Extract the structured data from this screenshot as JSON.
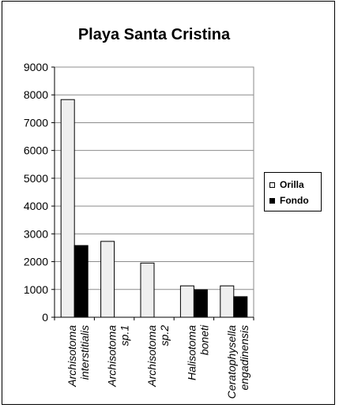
{
  "chart_data": {
    "type": "bar",
    "title": "Playa Santa Cristina",
    "categories": [
      [
        "Archisotoma",
        "interstitialis"
      ],
      [
        "Archisotoma",
        "sp.1"
      ],
      [
        "Archisotoma",
        "sp.2"
      ],
      [
        "Halisotoma",
        "boneti"
      ],
      [
        "Ceratophysella",
        "engadinensis"
      ]
    ],
    "series": [
      {
        "name": "Orilla",
        "color": "#efefef",
        "values": [
          7830,
          2730,
          1950,
          1130,
          1130
        ]
      },
      {
        "name": "Fondo",
        "color": "#000000",
        "values": [
          2580,
          0,
          0,
          990,
          740
        ]
      }
    ],
    "ylim": [
      0,
      9000
    ],
    "yticks": [
      0,
      1000,
      2000,
      3000,
      4000,
      5000,
      6000,
      7000,
      8000,
      9000
    ],
    "grid": true,
    "legend": "right"
  }
}
